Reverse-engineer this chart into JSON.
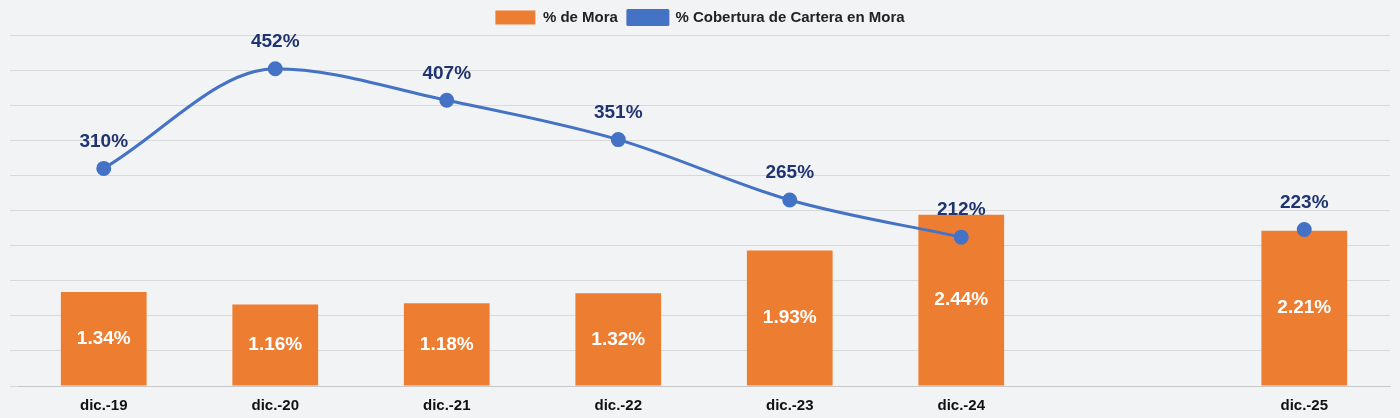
{
  "chart_data": {
    "type": "bar",
    "categories": [
      "dic.-19",
      "dic.-20",
      "dic.-21",
      "dic.-22",
      "dic.-23",
      "dic.-24",
      null,
      "dic.-25"
    ],
    "series": [
      {
        "name": "% de Mora",
        "color": "#ed7d31",
        "values": [
          1.34,
          1.16,
          1.18,
          1.32,
          1.93,
          2.44,
          null,
          2.21
        ],
        "value_labels": [
          "1.34%",
          "1.16%",
          "1.18%",
          "1.32%",
          "1.93%",
          "2.44%",
          null,
          "2.21%"
        ]
      },
      {
        "name": "% Cobertura de Cartera en Mora",
        "type": "line",
        "axis": "y2",
        "color": "#4472c4",
        "values": [
          310,
          452,
          407,
          351,
          265,
          212,
          null,
          223
        ],
        "value_labels": [
          "310%",
          "452%",
          "407%",
          "351%",
          "265%",
          "212%",
          null,
          "223%"
        ]
      }
    ],
    "ylim": [
      0,
      5
    ],
    "yticks": [
      0,
      0.5,
      1,
      1.5,
      2,
      2.5,
      3,
      3.5,
      4,
      4.5,
      5
    ],
    "y2lim": [
      0,
      500
    ],
    "grid": "y",
    "legend": "top",
    "tick_labels": "x",
    "marker": "circle",
    "line_style": "solid"
  }
}
